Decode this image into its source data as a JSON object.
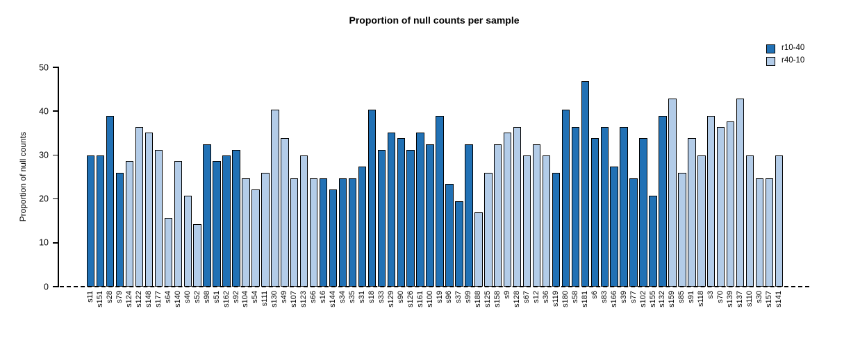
{
  "chart_data": {
    "type": "bar",
    "title": "Proportion of null counts per sample",
    "xlabel": "",
    "ylabel": "Proportion of null counts",
    "ylim": [
      0,
      50
    ],
    "yticks": [
      0,
      10,
      20,
      30,
      40,
      50
    ],
    "grid": false,
    "legend_position": "top-right",
    "baseline": {
      "y": 0,
      "style": "dashed",
      "color": "#000000"
    },
    "legend": [
      {
        "label": "r10-40",
        "color": "#2171b5"
      },
      {
        "label": "r40-10",
        "color": "#b3cce8"
      }
    ],
    "bars": [
      {
        "sample": "s11",
        "value": 29.9,
        "group": "r10-40"
      },
      {
        "sample": "s151",
        "value": 29.9,
        "group": "r10-40"
      },
      {
        "sample": "s28",
        "value": 39.0,
        "group": "r10-40"
      },
      {
        "sample": "s79",
        "value": 26.0,
        "group": "r10-40"
      },
      {
        "sample": "s124",
        "value": 28.6,
        "group": "r40-10"
      },
      {
        "sample": "s122",
        "value": 36.4,
        "group": "r40-10"
      },
      {
        "sample": "s148",
        "value": 35.1,
        "group": "r40-10"
      },
      {
        "sample": "s177",
        "value": 31.2,
        "group": "r40-10"
      },
      {
        "sample": "s64",
        "value": 15.6,
        "group": "r40-10"
      },
      {
        "sample": "s140",
        "value": 28.6,
        "group": "r40-10"
      },
      {
        "sample": "s40",
        "value": 20.8,
        "group": "r40-10"
      },
      {
        "sample": "s52",
        "value": 14.3,
        "group": "r40-10"
      },
      {
        "sample": "s98",
        "value": 32.5,
        "group": "r10-40"
      },
      {
        "sample": "s51",
        "value": 28.6,
        "group": "r10-40"
      },
      {
        "sample": "s162",
        "value": 29.9,
        "group": "r10-40"
      },
      {
        "sample": "s92",
        "value": 31.2,
        "group": "r10-40"
      },
      {
        "sample": "s104",
        "value": 24.7,
        "group": "r40-10"
      },
      {
        "sample": "s54",
        "value": 22.1,
        "group": "r40-10"
      },
      {
        "sample": "s111",
        "value": 26.0,
        "group": "r40-10"
      },
      {
        "sample": "s130",
        "value": 40.3,
        "group": "r40-10"
      },
      {
        "sample": "s49",
        "value": 33.8,
        "group": "r40-10"
      },
      {
        "sample": "s107",
        "value": 24.7,
        "group": "r40-10"
      },
      {
        "sample": "s123",
        "value": 29.9,
        "group": "r40-10"
      },
      {
        "sample": "s66",
        "value": 24.7,
        "group": "r40-10"
      },
      {
        "sample": "s16",
        "value": 24.7,
        "group": "r10-40"
      },
      {
        "sample": "s144",
        "value": 22.1,
        "group": "r10-40"
      },
      {
        "sample": "s34",
        "value": 24.7,
        "group": "r10-40"
      },
      {
        "sample": "s35",
        "value": 24.7,
        "group": "r10-40"
      },
      {
        "sample": "s31",
        "value": 27.3,
        "group": "r10-40"
      },
      {
        "sample": "s18",
        "value": 40.3,
        "group": "r10-40"
      },
      {
        "sample": "s33",
        "value": 31.2,
        "group": "r10-40"
      },
      {
        "sample": "s129",
        "value": 35.1,
        "group": "r10-40"
      },
      {
        "sample": "s90",
        "value": 33.8,
        "group": "r10-40"
      },
      {
        "sample": "s126",
        "value": 31.2,
        "group": "r10-40"
      },
      {
        "sample": "s161",
        "value": 35.1,
        "group": "r10-40"
      },
      {
        "sample": "s100",
        "value": 32.5,
        "group": "r10-40"
      },
      {
        "sample": "s19",
        "value": 39.0,
        "group": "r10-40"
      },
      {
        "sample": "s96",
        "value": 23.4,
        "group": "r10-40"
      },
      {
        "sample": "s37",
        "value": 19.5,
        "group": "r10-40"
      },
      {
        "sample": "s99",
        "value": 32.5,
        "group": "r10-40"
      },
      {
        "sample": "s188",
        "value": 16.9,
        "group": "r40-10"
      },
      {
        "sample": "s125",
        "value": 26.0,
        "group": "r40-10"
      },
      {
        "sample": "s158",
        "value": 32.5,
        "group": "r40-10"
      },
      {
        "sample": "s9",
        "value": 35.1,
        "group": "r40-10"
      },
      {
        "sample": "s128",
        "value": 36.4,
        "group": "r40-10"
      },
      {
        "sample": "s67",
        "value": 29.9,
        "group": "r40-10"
      },
      {
        "sample": "s12",
        "value": 32.5,
        "group": "r40-10"
      },
      {
        "sample": "s36",
        "value": 29.9,
        "group": "r40-10"
      },
      {
        "sample": "s119",
        "value": 26.0,
        "group": "r10-40"
      },
      {
        "sample": "s180",
        "value": 40.3,
        "group": "r10-40"
      },
      {
        "sample": "s58",
        "value": 36.4,
        "group": "r10-40"
      },
      {
        "sample": "s181",
        "value": 46.8,
        "group": "r10-40"
      },
      {
        "sample": "s6",
        "value": 33.8,
        "group": "r10-40"
      },
      {
        "sample": "s83",
        "value": 36.4,
        "group": "r10-40"
      },
      {
        "sample": "s166",
        "value": 27.3,
        "group": "r10-40"
      },
      {
        "sample": "s39",
        "value": 36.4,
        "group": "r10-40"
      },
      {
        "sample": "s77",
        "value": 24.7,
        "group": "r10-40"
      },
      {
        "sample": "s102",
        "value": 33.8,
        "group": "r10-40"
      },
      {
        "sample": "s155",
        "value": 20.8,
        "group": "r10-40"
      },
      {
        "sample": "s132",
        "value": 39.0,
        "group": "r10-40"
      },
      {
        "sample": "s159",
        "value": 42.9,
        "group": "r40-10"
      },
      {
        "sample": "s85",
        "value": 26.0,
        "group": "r40-10"
      },
      {
        "sample": "s91",
        "value": 33.8,
        "group": "r40-10"
      },
      {
        "sample": "s118",
        "value": 29.9,
        "group": "r40-10"
      },
      {
        "sample": "s3",
        "value": 39.0,
        "group": "r40-10"
      },
      {
        "sample": "s70",
        "value": 36.4,
        "group": "r40-10"
      },
      {
        "sample": "s139",
        "value": 37.7,
        "group": "r40-10"
      },
      {
        "sample": "s137",
        "value": 42.9,
        "group": "r40-10"
      },
      {
        "sample": "s110",
        "value": 29.9,
        "group": "r40-10"
      },
      {
        "sample": "s30",
        "value": 24.7,
        "group": "r40-10"
      },
      {
        "sample": "s157",
        "value": 24.7,
        "group": "r40-10"
      },
      {
        "sample": "s141",
        "value": 29.9,
        "group": "r40-10"
      }
    ]
  }
}
